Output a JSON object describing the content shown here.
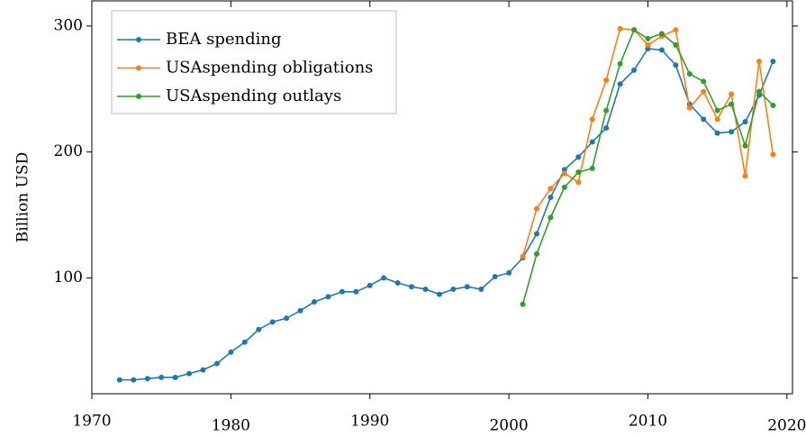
{
  "chart_data": {
    "type": "line",
    "y_label": "Billion USD",
    "x": [
      1972,
      1973,
      1974,
      1975,
      1976,
      1977,
      1978,
      1979,
      1980,
      1981,
      1982,
      1983,
      1984,
      1985,
      1986,
      1987,
      1988,
      1989,
      1990,
      1991,
      1992,
      1993,
      1994,
      1995,
      1996,
      1997,
      1998,
      1999,
      2000,
      2001,
      2002,
      2003,
      2004,
      2005,
      2006,
      2007,
      2008,
      2009,
      2010,
      2011,
      2012,
      2013,
      2014,
      2015,
      2016,
      2017,
      2018,
      2019
    ],
    "series": [
      {
        "name": "BEA spending",
        "color": "#1f77b4",
        "values": [
          19,
          19,
          20,
          21,
          21,
          24,
          27,
          32,
          41,
          49,
          59,
          65,
          68,
          74,
          81,
          85,
          89,
          89,
          94,
          100,
          96,
          93,
          91,
          87,
          91,
          93,
          91,
          101,
          104,
          116,
          135,
          164,
          186,
          196,
          208,
          219,
          254,
          265,
          282,
          281,
          269,
          238,
          226,
          215,
          216,
          224,
          245,
          272
        ]
      },
      {
        "name": "USAspending obligations",
        "color": "#ff7f0e",
        "values": [
          null,
          null,
          null,
          null,
          null,
          null,
          null,
          null,
          null,
          null,
          null,
          null,
          null,
          null,
          null,
          null,
          null,
          null,
          null,
          null,
          null,
          null,
          null,
          null,
          null,
          null,
          null,
          null,
          null,
          117,
          155,
          171,
          183,
          176,
          226,
          257,
          298,
          297,
          285,
          292,
          297,
          235,
          248,
          226,
          246,
          181,
          272,
          198
        ]
      },
      {
        "name": "USAspending outlays",
        "color": "#2ca02c",
        "values": [
          null,
          null,
          null,
          null,
          null,
          null,
          null,
          null,
          null,
          null,
          null,
          null,
          null,
          null,
          null,
          null,
          null,
          null,
          null,
          null,
          null,
          null,
          null,
          null,
          null,
          null,
          null,
          null,
          null,
          79,
          119,
          148,
          172,
          184,
          187,
          233,
          270,
          297,
          290,
          294,
          285,
          262,
          256,
          233,
          238,
          205,
          248,
          237
        ]
      }
    ],
    "xlim": [
      1970,
      2020.4
    ],
    "xticks": [
      1970,
      1980,
      1990,
      2000,
      2010,
      2020
    ],
    "ylim": [
      8,
      320
    ],
    "yticks": [
      100,
      200,
      300
    ],
    "legend": "upper left"
  }
}
